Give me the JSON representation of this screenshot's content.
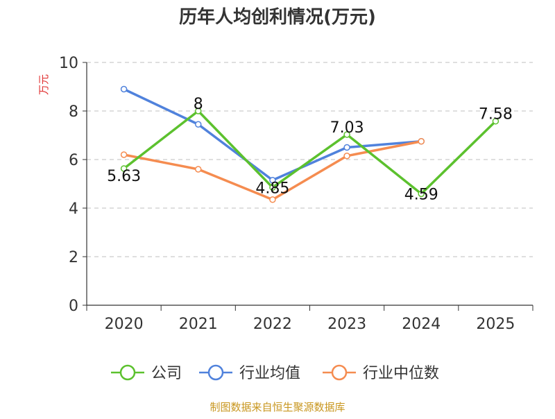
{
  "chart_data": {
    "type": "line",
    "title": "历年人均创利情况(万元)",
    "ylabel": "万元",
    "xlabel": "",
    "categories": [
      "2020",
      "2021",
      "2022",
      "2023",
      "2024",
      "2025"
    ],
    "ylim": [
      0,
      10
    ],
    "yticks": [
      "0",
      "2",
      "4",
      "6",
      "8",
      "10"
    ],
    "grid": true,
    "legend_position": "bottom",
    "series": [
      {
        "name": "公司",
        "color": "#5cc12e",
        "values": [
          5.63,
          8,
          4.85,
          7.03,
          4.59,
          7.58
        ],
        "labels": [
          "5.63",
          "8",
          "4.85",
          "7.03",
          "4.59",
          "7.58"
        ]
      },
      {
        "name": "行业均值",
        "color": "#5082dc",
        "values": [
          8.9,
          7.45,
          5.15,
          6.5,
          6.75,
          null
        ],
        "labels": []
      },
      {
        "name": "行业中位数",
        "color": "#f58c50",
        "values": [
          6.2,
          5.6,
          4.35,
          6.15,
          6.75,
          null
        ],
        "labels": []
      }
    ]
  },
  "source": "制图数据来自恒生聚源数据库",
  "colors": {
    "axis": "#333333",
    "grid": "#cccccc",
    "ylabel": "#e03131",
    "source": "#c8961e"
  }
}
